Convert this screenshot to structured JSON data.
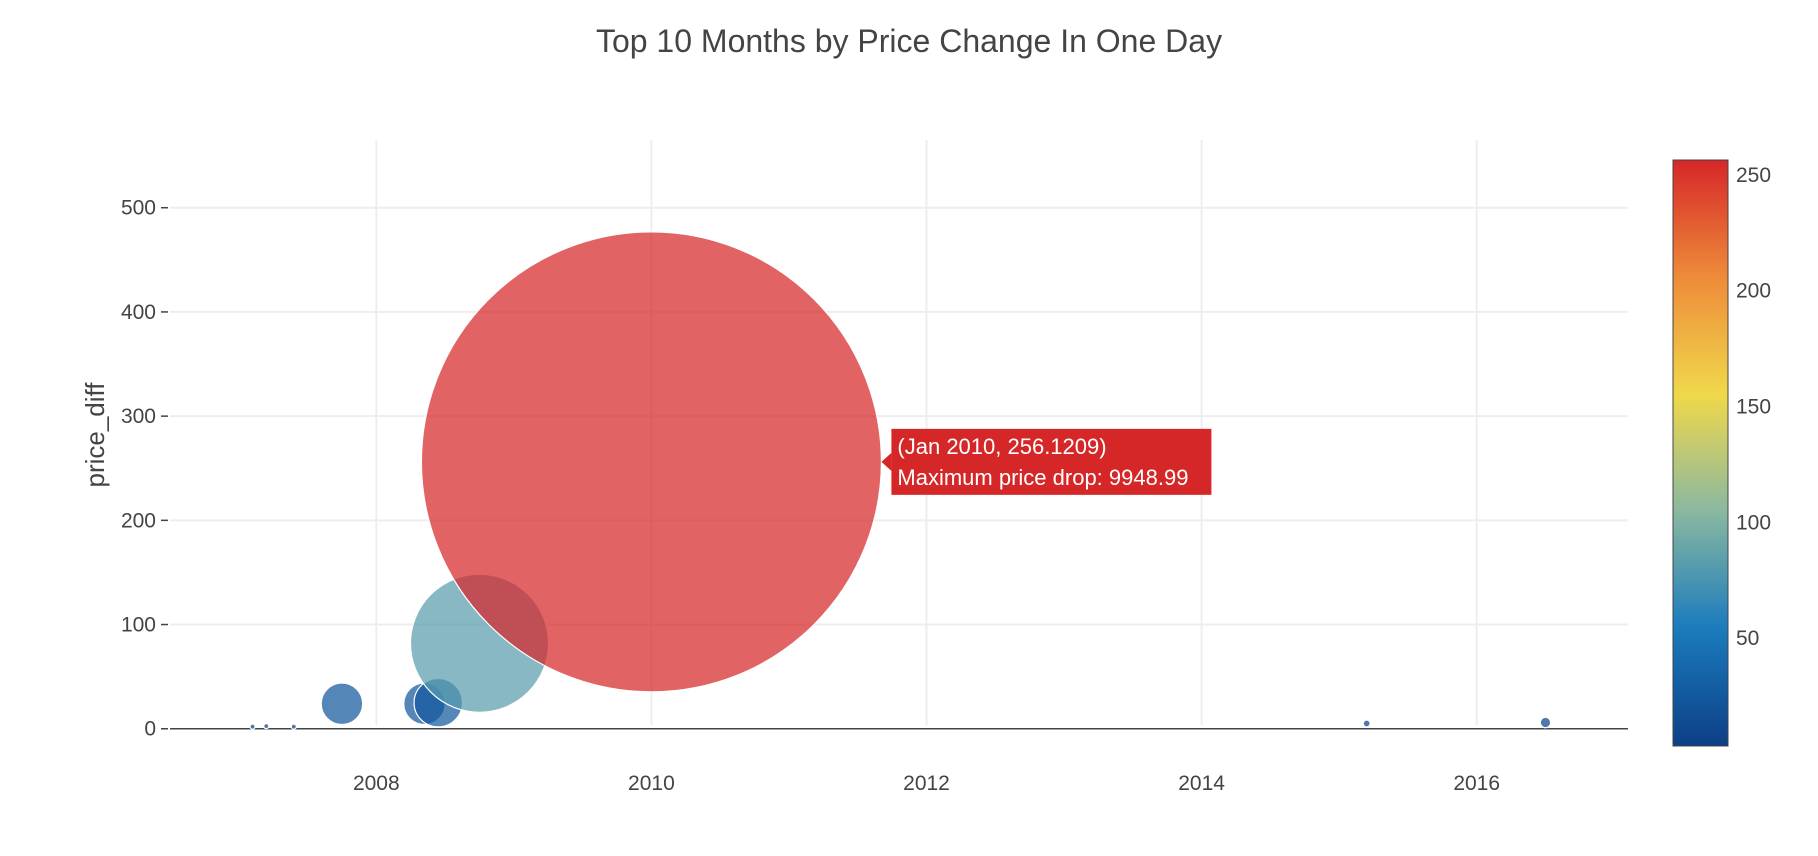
{
  "chart_data": {
    "type": "scatter",
    "title": "Top 10 Months by Price Change In One Day",
    "xlabel": "",
    "ylabel": "price_diff",
    "xlim": [
      2006.5,
      2017.1
    ],
    "ylim": [
      -30,
      565
    ],
    "x_ticks": [
      "2008",
      "2010",
      "2012",
      "2014",
      "2016"
    ],
    "y_ticks": [
      "0",
      "100",
      "200",
      "300",
      "400",
      "500"
    ],
    "grid": true,
    "colorscale": {
      "range": [
        3,
        256
      ],
      "ticks": [
        "50",
        "100",
        "150",
        "200",
        "250"
      ],
      "colors": [
        "#0d3f86",
        "#1a7bbd",
        "#8ab8a0",
        "#f0d84a",
        "#ee8b3a",
        "#d62728"
      ]
    },
    "points": [
      {
        "x": 2007.1,
        "y": 2.0,
        "size": 2,
        "color_value": 5
      },
      {
        "x": 2007.2,
        "y": 2.5,
        "size": 3,
        "color_value": 5
      },
      {
        "x": 2007.4,
        "y": 2.0,
        "size": 2,
        "color_value": 5
      },
      {
        "x": 2007.75,
        "y": 24.0,
        "size": 36,
        "color_value": 24
      },
      {
        "x": 2008.35,
        "y": 24.0,
        "size": 36,
        "color_value": 24
      },
      {
        "x": 2008.45,
        "y": 25.0,
        "size": 42,
        "color_value": 25
      },
      {
        "x": 2008.75,
        "y": 82.0,
        "size": 120,
        "color_value": 82
      },
      {
        "x": 2010.0,
        "y": 256.1209,
        "size": 400,
        "color_value": 256
      },
      {
        "x": 2015.2,
        "y": 5.0,
        "size": 6,
        "color_value": 5
      },
      {
        "x": 2016.5,
        "y": 6.0,
        "size": 9,
        "color_value": 6
      }
    ],
    "hover": {
      "line1": "(Jan 2010, 256.1209)",
      "line2": "Maximum price drop: 9948.99",
      "point_index": 7
    }
  }
}
